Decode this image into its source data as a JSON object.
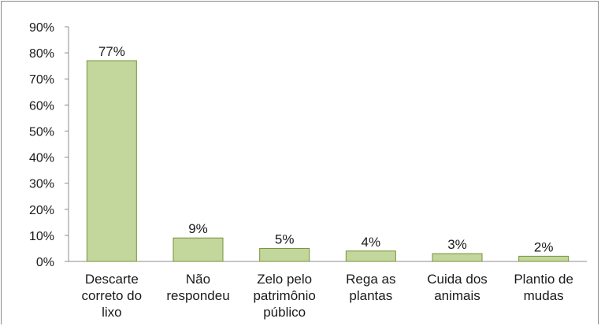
{
  "chart_data": {
    "type": "bar",
    "categories": [
      [
        "Descarte",
        "correto do",
        "lixo"
      ],
      [
        "Não",
        "respondeu"
      ],
      [
        "Zelo pelo",
        "patrimônio",
        "público"
      ],
      [
        "Rega as",
        "plantas"
      ],
      [
        "Cuida dos",
        "animais"
      ],
      [
        "Plantio de",
        "mudas"
      ]
    ],
    "values": [
      77,
      9,
      5,
      4,
      3,
      2
    ],
    "data_labels": [
      "77%",
      "9%",
      "5%",
      "4%",
      "3%",
      "2%"
    ],
    "y_ticks": [
      "0%",
      "10%",
      "20%",
      "30%",
      "40%",
      "50%",
      "60%",
      "70%",
      "80%",
      "90%"
    ],
    "ylim": [
      0,
      90
    ],
    "title": "",
    "xlabel": "",
    "ylabel": "",
    "grid": false,
    "legend": "none",
    "colors": {
      "bar_fill": "#c3d69b",
      "bar_stroke": "#77933c",
      "axis": "#8c8c8c"
    }
  }
}
